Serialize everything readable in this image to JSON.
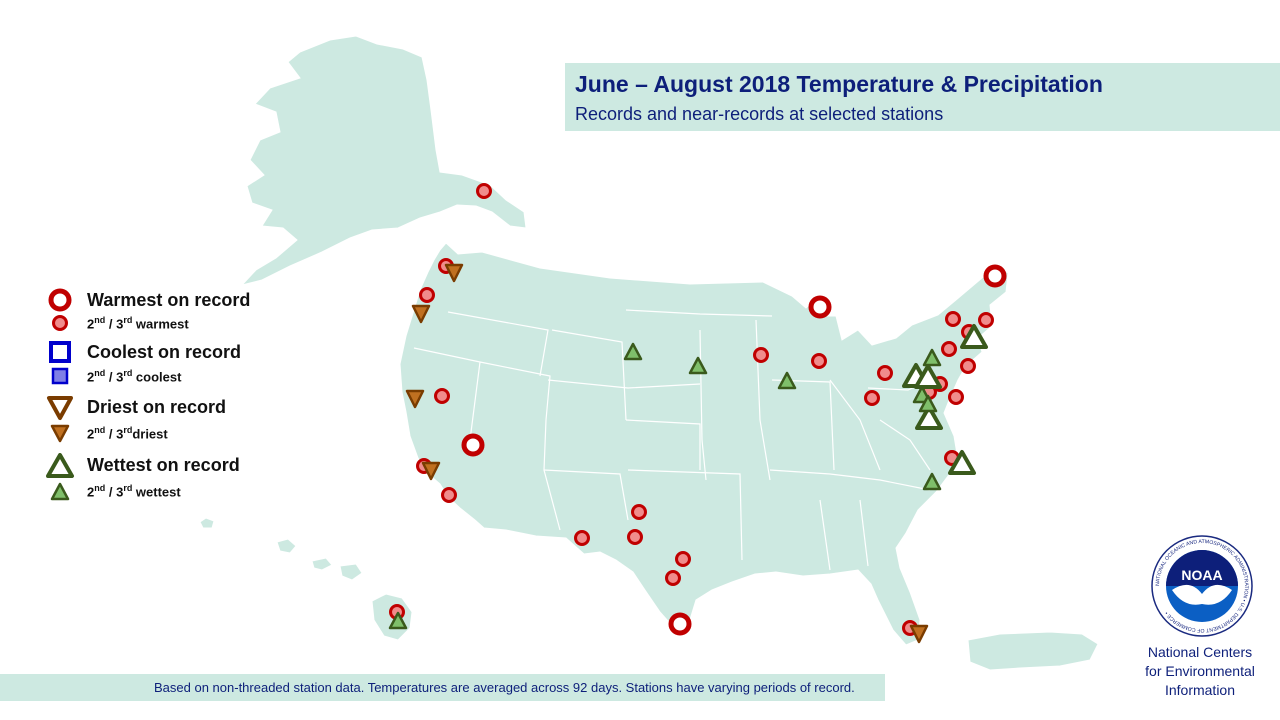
{
  "title": "June – August 2018 Temperature & Precipitation",
  "subtitle": "Records and near-records  at selected stations",
  "legend": {
    "warmest": "Warmest on record",
    "warm23_prefix_a": "2",
    "warm23_sup_a": "nd",
    "warm23_mid": " / 3",
    "warm23_sup_b": "rd",
    "warm23_suffix": " warmest",
    "coolest": "Coolest on record",
    "cool23_sup_a": "nd",
    "cool23_mid": " / 3",
    "cool23_sup_b": "rd",
    "cool23_suffix": " coolest",
    "driest": "Driest on record",
    "dry23_sup_a": "nd",
    "dry23_mid": " / 3",
    "dry23_sup_b": "rd",
    "dry23_suffix": "driest",
    "wettest": "Wettest on record",
    "wet23_sup_a": "nd",
    "wet23_mid": " / 3",
    "wet23_sup_b": "rd",
    "wet23_suffix": " wettest",
    "two": "2"
  },
  "footer": "Based on non-threaded station data. Temperatures are averaged across 92 days. Stations have varying periods of record.",
  "org": [
    "National Centers",
    "for Environmental",
    "Information"
  ],
  "logo": {
    "wordmark": "NOAA",
    "ring_text": "NATIONAL OCEANIC AND ATMOSPHERIC ADMINISTRATION • U.S. DEPARTMENT OF COMMERCE •"
  },
  "colors": {
    "land": "#cde9e1",
    "state_lines": "#ffffff",
    "warm_red": "#c00000",
    "warm_fill": "#f08c8c",
    "cool_blue": "#0000cc",
    "cool_fill": "#7f7fe6",
    "dry_brown": "#7a3c00",
    "dry_fill": "#c07020",
    "wet_green": "#3a5a1c",
    "wet_fill": "#7fbf6a",
    "title_text": "#0d1f7a"
  },
  "symbols": {
    "warmest_record": [
      [
        820,
        307
      ],
      [
        995,
        276
      ],
      [
        473,
        445
      ],
      [
        680,
        624
      ]
    ],
    "warm_2nd3rd": [
      [
        484,
        191
      ],
      [
        446,
        266
      ],
      [
        427,
        295
      ],
      [
        442,
        396
      ],
      [
        424,
        466
      ],
      [
        449,
        495
      ],
      [
        761,
        355
      ],
      [
        819,
        361
      ],
      [
        953,
        319
      ],
      [
        986,
        320
      ],
      [
        969,
        332
      ],
      [
        949,
        349
      ],
      [
        885,
        373
      ],
      [
        872,
        398
      ],
      [
        940,
        384
      ],
      [
        968,
        366
      ],
      [
        956,
        397
      ],
      [
        929,
        392
      ],
      [
        952,
        458
      ],
      [
        582,
        538
      ],
      [
        639,
        512
      ],
      [
        635,
        537
      ],
      [
        683,
        559
      ],
      [
        673,
        578
      ],
      [
        397,
        612
      ],
      [
        910,
        628
      ]
    ],
    "dry_2nd3rd": [
      [
        454,
        273
      ],
      [
        421,
        314
      ],
      [
        415,
        399
      ],
      [
        431,
        471
      ],
      [
        919,
        634
      ]
    ],
    "wet_record": [
      [
        974,
        337
      ],
      [
        916,
        376
      ],
      [
        928,
        377
      ],
      [
        929,
        418
      ],
      [
        962,
        463
      ]
    ],
    "wet_2nd3rd": [
      [
        633,
        352
      ],
      [
        698,
        366
      ],
      [
        787,
        381
      ],
      [
        932,
        358
      ],
      [
        922,
        395
      ],
      [
        928,
        404
      ],
      [
        932,
        482
      ],
      [
        398,
        621
      ]
    ]
  }
}
